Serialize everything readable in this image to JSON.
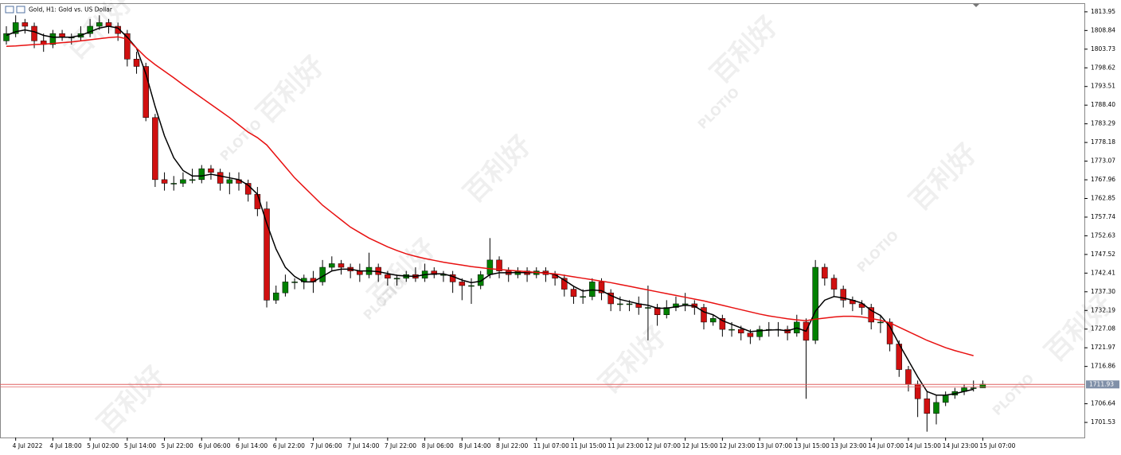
{
  "chart_data": {
    "type": "candlestick",
    "title": "Gold, H1:  Gold vs. US Dollar",
    "watermark_text": "百利好",
    "watermark_logo": "PLOTIO",
    "categories": [
      null,
      "4 Jul 2022",
      null,
      null,
      null,
      "4 Jul 18:00",
      null,
      null,
      null,
      "5 Jul 02:00",
      null,
      null,
      null,
      "5 Jul 14:00",
      null,
      null,
      null,
      "5 Jul 22:00",
      null,
      null,
      null,
      "6 Jul 06:00",
      null,
      null,
      null,
      "6 Jul 14:00",
      null,
      null,
      null,
      "6 Jul 22:00",
      null,
      null,
      null,
      "7 Jul 06:00",
      null,
      null,
      null,
      "7 Jul 14:00",
      null,
      null,
      null,
      "7 Jul 22:00",
      null,
      null,
      null,
      "8 Jul 06:00",
      null,
      null,
      null,
      "8 Jul 14:00",
      null,
      null,
      null,
      "8 Jul 22:00",
      null,
      null,
      null,
      "11 Jul 07:00",
      null,
      null,
      null,
      "11 Jul 15:00",
      null,
      null,
      null,
      "11 Jul 23:00",
      null,
      null,
      null,
      "12 Jul 07:00",
      null,
      null,
      null,
      "12 Jul 15:00",
      null,
      null,
      null,
      "12 Jul 23:00",
      null,
      null,
      null,
      "13 Jul 07:00",
      null,
      null,
      null,
      "13 Jul 15:00",
      null,
      null,
      null,
      "13 Jul 23:00",
      null,
      null,
      null,
      "14 Jul 07:00",
      null,
      null,
      null,
      "14 Jul 15:00",
      null,
      null,
      null,
      "14 Jul 23:00",
      null,
      null,
      null,
      "15 Jul 07:00"
    ],
    "open": [
      1806,
      1808,
      1811,
      1810,
      1806,
      1805,
      1808,
      1807,
      1807,
      1808,
      1810,
      1811,
      1810,
      1808,
      1801,
      1799,
      1785,
      1768,
      1767,
      1767,
      1768,
      1768,
      1771,
      1770,
      1767,
      1768,
      1767,
      1764,
      1760,
      1735,
      1737,
      1740,
      1740,
      1741,
      1740,
      1744,
      1745,
      1744,
      1743,
      1742,
      1744,
      1742,
      1741,
      1741,
      1742,
      1741,
      1743,
      1742,
      1742,
      1740,
      1739,
      1739,
      1742,
      1746,
      1743,
      1742,
      1743,
      1742,
      1743,
      1742,
      1741,
      1738,
      1736,
      1736,
      1740,
      1737,
      1734,
      1734,
      1734,
      1733,
      1733,
      1731,
      1733,
      1734,
      1734,
      1733,
      1729,
      1730,
      1727,
      1727,
      1726,
      1725,
      1727,
      1727,
      1727,
      1726,
      1729,
      1724,
      1744,
      1741,
      1738,
      1735,
      1734,
      1733,
      1729,
      1729,
      1723,
      1716,
      1712,
      1708,
      1704,
      1707,
      1709,
      1710,
      1711,
      1711
    ],
    "high": [
      1810,
      1813,
      1812,
      1811,
      1808,
      1809,
      1809,
      1808,
      1810,
      1812,
      1813,
      1812,
      1811,
      1809,
      1803,
      1800,
      1786,
      1770,
      1769,
      1770,
      1771,
      1772,
      1772,
      1771,
      1770,
      1770,
      1768,
      1766,
      1762,
      1739,
      1742,
      1741,
      1742,
      1743,
      1746,
      1747,
      1746,
      1745,
      1745,
      1748,
      1745,
      1743,
      1742,
      1743,
      1744,
      1745,
      1744,
      1743,
      1743,
      1741,
      1741,
      1743,
      1752,
      1747,
      1744,
      1744,
      1744,
      1744,
      1744,
      1743,
      1742,
      1739,
      1738,
      1741,
      1741,
      1738,
      1736,
      1735,
      1736,
      1739,
      1734,
      1735,
      1736,
      1737,
      1735,
      1734,
      1731,
      1731,
      1729,
      1728,
      1727,
      1728,
      1729,
      1729,
      1728,
      1731,
      1730,
      1746,
      1745,
      1742,
      1739,
      1736,
      1735,
      1734,
      1731,
      1730,
      1724,
      1717,
      1713,
      1710,
      1709,
      1710,
      1711,
      1712,
      1713,
      1713
    ],
    "low": [
      1805,
      1807,
      1808,
      1804,
      1803,
      1804,
      1806,
      1805,
      1806,
      1807,
      1809,
      1808,
      1806,
      1799,
      1797,
      1784,
      1766,
      1765,
      1765,
      1766,
      1767,
      1767,
      1768,
      1765,
      1764,
      1765,
      1762,
      1758,
      1733,
      1734,
      1736,
      1738,
      1738,
      1737,
      1739,
      1743,
      1742,
      1741,
      1740,
      1741,
      1740,
      1739,
      1739,
      1740,
      1740,
      1740,
      1741,
      1740,
      1737,
      1735,
      1734,
      1738,
      1741,
      1741,
      1740,
      1741,
      1740,
      1741,
      1740,
      1739,
      1736,
      1734,
      1734,
      1735,
      1735,
      1732,
      1732,
      1732,
      1731,
      1724,
      1728,
      1730,
      1732,
      1732,
      1731,
      1727,
      1728,
      1725,
      1725,
      1724,
      1723,
      1724,
      1725,
      1725,
      1724,
      1725,
      1708,
      1723,
      1739,
      1736,
      1733,
      1732,
      1731,
      1727,
      1726,
      1721,
      1714,
      1710,
      1703,
      1699,
      1701,
      1706,
      1708,
      1709,
      1710,
      1711
    ],
    "close": [
      1808,
      1811,
      1810,
      1806,
      1805,
      1808,
      1807,
      1807,
      1808,
      1810,
      1811,
      1810,
      1808,
      1801,
      1799,
      1785,
      1768,
      1767,
      1767,
      1768,
      1768,
      1771,
      1770,
      1767,
      1768,
      1767,
      1764,
      1760,
      1735,
      1737,
      1740,
      1740,
      1741,
      1740,
      1744,
      1745,
      1744,
      1743,
      1742,
      1744,
      1742,
      1741,
      1741,
      1742,
      1741,
      1743,
      1742,
      1742,
      1740,
      1739,
      1739,
      1742,
      1746,
      1743,
      1742,
      1743,
      1742,
      1743,
      1742,
      1741,
      1738,
      1736,
      1736,
      1740,
      1737,
      1734,
      1734,
      1734,
      1733,
      1733,
      1731,
      1733,
      1734,
      1734,
      1733,
      1729,
      1730,
      1727,
      1727,
      1726,
      1725,
      1727,
      1727,
      1727,
      1726,
      1729,
      1724,
      1744,
      1741,
      1738,
      1735,
      1734,
      1733,
      1729,
      1729,
      1723,
      1716,
      1712,
      1708,
      1704,
      1707,
      1709,
      1710,
      1711,
      1711,
      1712
    ],
    "up_color": "#008000",
    "down_color": "#d01010",
    "wick_color": "#000000",
    "lines": [
      {
        "color": "#000000",
        "values": [
          1807.5,
          1808.5,
          1809,
          1808.5,
          1807.5,
          1807,
          1807,
          1807,
          1807.5,
          1808.5,
          1809.5,
          1810,
          1809.5,
          1807,
          1804,
          1797,
          1788,
          1780,
          1774,
          1770.5,
          1769,
          1769,
          1769.5,
          1769,
          1768.5,
          1768,
          1766.5,
          1764,
          1756,
          1749,
          1744,
          1741.5,
          1740,
          1740,
          1741.5,
          1743,
          1743.5,
          1743.5,
          1743,
          1743,
          1742.8,
          1742.3,
          1741.8,
          1741.6,
          1741.5,
          1742,
          1742.2,
          1742.2,
          1741.5,
          1740.5,
          1739.8,
          1740.2,
          1742,
          1742.5,
          1742.5,
          1742.6,
          1742.5,
          1742.6,
          1742.5,
          1742,
          1740.5,
          1738.8,
          1737.5,
          1737.8,
          1737.6,
          1736.3,
          1735.2,
          1734.6,
          1734,
          1733.6,
          1732.8,
          1732.8,
          1733.2,
          1733.6,
          1733.4,
          1731.8,
          1731,
          1729.4,
          1728.4,
          1727.4,
          1726.4,
          1726.6,
          1726.8,
          1726.9,
          1726.6,
          1727.4,
          1726.5,
          1732,
          1735,
          1736,
          1735.6,
          1735,
          1734.2,
          1732.2,
          1730.8,
          1727.8,
          1723,
          1718.5,
          1714,
          1710,
          1709,
          1709,
          1709.4,
          1710,
          1710.6,
          null
        ]
      },
      {
        "color": "#e81010",
        "values": [
          1804.5,
          1804.6,
          1804.8,
          1805,
          1805.1,
          1805.3,
          1805.5,
          1805.7,
          1806,
          1806.3,
          1806.6,
          1806.9,
          1807.1,
          1806.5,
          1804,
          1801.5,
          1799.5,
          1797.7,
          1795.9,
          1794,
          1792.2,
          1790.4,
          1788.6,
          1786.8,
          1785,
          1783,
          1781,
          1779.5,
          1777.5,
          1774.5,
          1771.5,
          1768.5,
          1766,
          1763.5,
          1761,
          1759,
          1757,
          1755,
          1753.5,
          1752,
          1750.8,
          1749.6,
          1748.6,
          1747.7,
          1747,
          1746.4,
          1745.9,
          1745.4,
          1745,
          1744.6,
          1744.2,
          1743.9,
          1743.6,
          1743.4,
          1743.2,
          1743,
          1742.8,
          1742.6,
          1742.4,
          1742.2,
          1741.8,
          1741.4,
          1741,
          1740.6,
          1740.2,
          1739.8,
          1739.3,
          1738.8,
          1738.3,
          1737.8,
          1737.3,
          1736.8,
          1736.3,
          1735.8,
          1735.3,
          1734.8,
          1734.2,
          1733.6,
          1733,
          1732.4,
          1731.8,
          1731.2,
          1730.7,
          1730.3,
          1729.9,
          1729.6,
          1729.4,
          1729.8,
          1730.1,
          1730.4,
          1730.6,
          1730.6,
          1730.4,
          1730,
          1729.5,
          1728.8,
          1727.6,
          1726.4,
          1725.2,
          1724,
          1723,
          1722,
          1721.2,
          1720.5,
          1719.8,
          null
        ]
      }
    ],
    "ylim": [
      1697.4,
      1816.1
    ],
    "yticks": [
      1813.95,
      1808.84,
      1803.73,
      1798.62,
      1793.51,
      {
        "value": 1788.4,
        "label": "1788.40"
      },
      1783.29,
      1778.18,
      1773.07,
      1767.96,
      1762.85,
      1757.74,
      1752.63,
      1747.52,
      1742.41,
      {
        "value": 1737.3,
        "label": "1737.30"
      },
      1732.19,
      1727.08,
      1721.97,
      1716.86,
      1706.64,
      1701.53
    ],
    "current_price": 1711.93,
    "current_price_color": "#e06060"
  }
}
